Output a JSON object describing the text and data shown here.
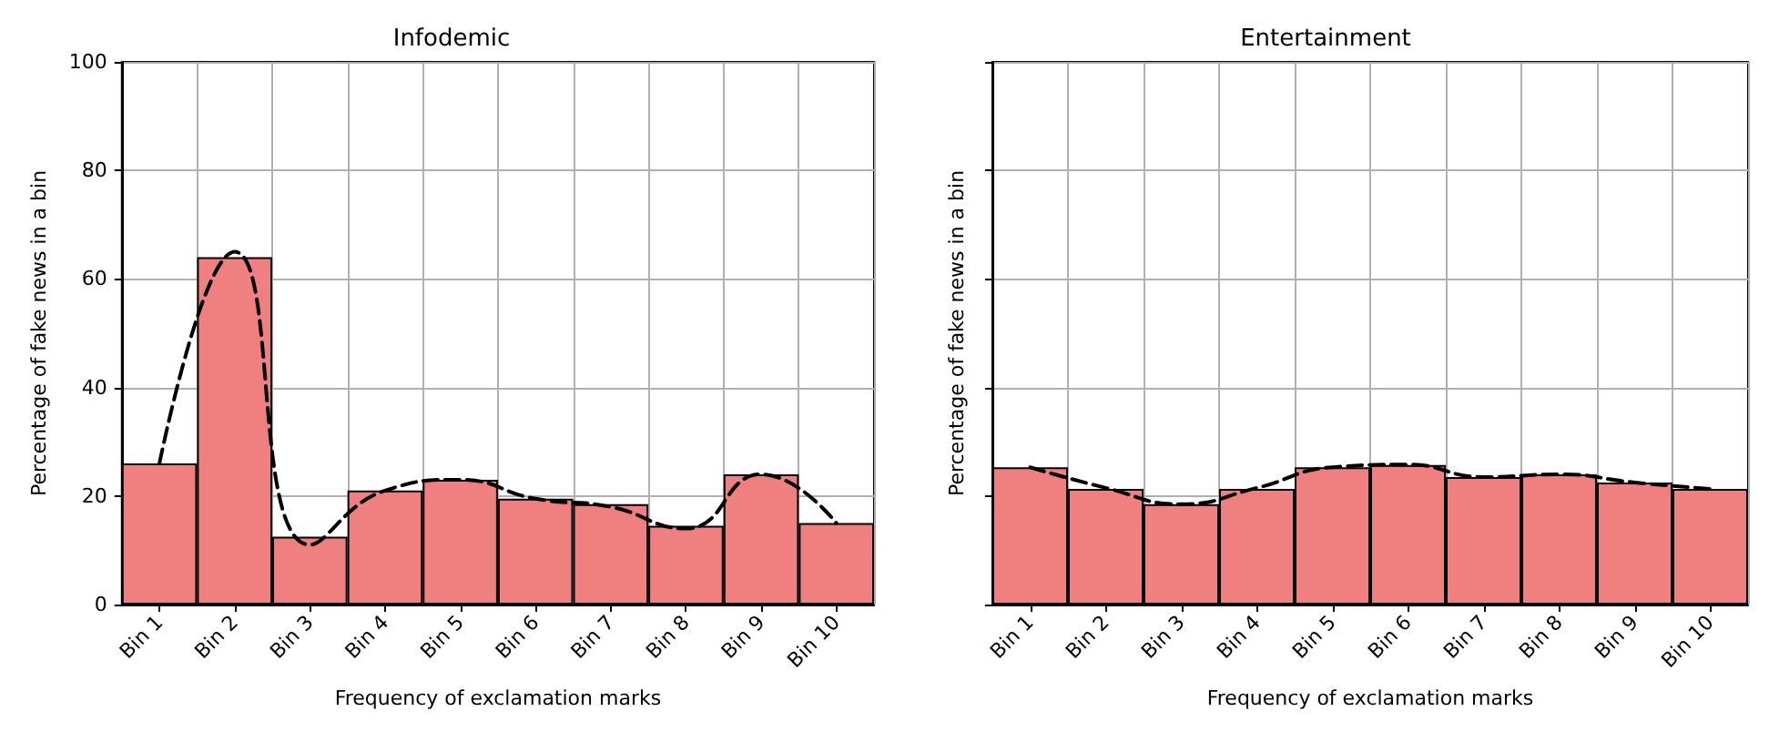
{
  "chart_data": [
    {
      "type": "bar",
      "title": "Infodemic",
      "xlabel": "Frequency of exclamation marks",
      "ylabel": "Percentage of fake news in a bin",
      "categories": [
        "Bin 1",
        "Bin 2",
        "Bin 3",
        "Bin 4",
        "Bin 5",
        "Bin 6",
        "Bin 7",
        "Bin 8",
        "Bin 9",
        "Bin 10"
      ],
      "series": [
        {
          "color": "#f08080",
          "values": [
            26,
            64,
            12.5,
            21,
            23,
            19.5,
            18.5,
            14.5,
            24,
            15
          ]
        },
        {
          "type": "line",
          "color": "#000000",
          "line_style": "dashed",
          "marker": "none",
          "values": [
            26,
            65,
            11,
            21,
            23,
            19.5,
            18,
            14,
            24,
            15
          ]
        }
      ],
      "ylim": [
        0,
        100
      ],
      "yticks": [
        0,
        20,
        40,
        60,
        80,
        100
      ],
      "grid": true
    },
    {
      "type": "bar",
      "title": "Entertainment",
      "xlabel": "Frequency of exclamation marks",
      "ylabel": "Percentage of fake news in a bin",
      "categories": [
        "Bin 1",
        "Bin 2",
        "Bin 3",
        "Bin 4",
        "Bin 5",
        "Bin 6",
        "Bin 7",
        "Bin 8",
        "Bin 9",
        "Bin 10"
      ],
      "series": [
        {
          "color": "#f08080",
          "values": [
            25.3,
            21.3,
            18.5,
            21.3,
            25.3,
            25.7,
            23.5,
            24,
            22.5,
            21.3
          ]
        },
        {
          "type": "line",
          "color": "#000000",
          "line_style": "dashed",
          "marker": "none",
          "values": [
            25.3,
            21.5,
            18.5,
            21.5,
            25.3,
            25.8,
            23.5,
            24,
            22.5,
            21.3
          ]
        }
      ],
      "ylim": [
        0,
        100
      ],
      "yticks": [
        0,
        20,
        40,
        60,
        80,
        100
      ],
      "grid": true,
      "tick_labels": "x"
    }
  ]
}
